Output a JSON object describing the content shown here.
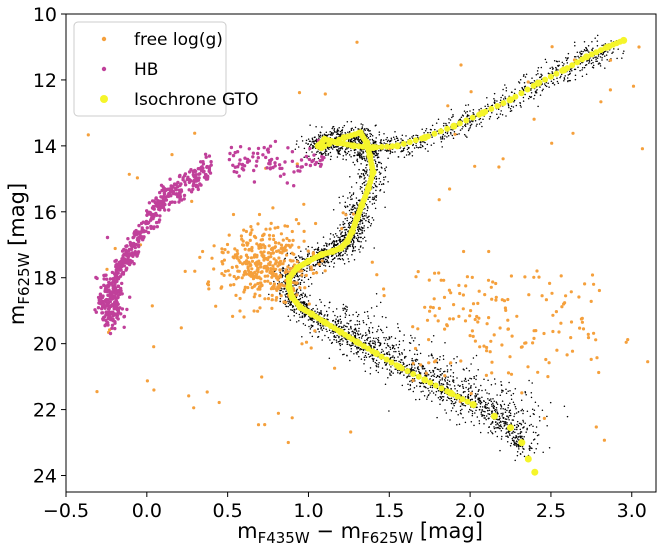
{
  "chart_data": {
    "type": "scatter",
    "xlabel": {
      "main": "m",
      "sub1": "F435W",
      "mid": " − m",
      "sub2": "F625W",
      "unit": " [mag]"
    },
    "ylabel": {
      "main": "m",
      "sub": "F625W",
      "unit": " [mag]"
    },
    "xlim": [
      -0.5,
      3.15
    ],
    "ylim": [
      24.5,
      10
    ],
    "y_inverted": true,
    "xticks": [
      -0.5,
      0.0,
      0.5,
      1.0,
      1.5,
      2.0,
      2.5,
      3.0
    ],
    "xtick_labels": [
      "−0.5",
      "0.0",
      "0.5",
      "1.0",
      "1.5",
      "2.0",
      "2.5",
      "3.0"
    ],
    "yticks": [
      10,
      12,
      14,
      16,
      18,
      20,
      22,
      24
    ],
    "ytick_labels": [
      "10",
      "12",
      "14",
      "16",
      "18",
      "20",
      "22",
      "24"
    ],
    "grid": false,
    "legend_position": "top-left",
    "legend": [
      {
        "label": "free log(g)",
        "color": "#f5a03c"
      },
      {
        "label": "HB",
        "color": "#c0409a"
      },
      {
        "label": "Isochrone GTO",
        "color": "#f5f52a"
      }
    ],
    "series": [
      {
        "name": "Isochrone GTO",
        "color": "#f5f52a",
        "x": [
          2.95,
          2.85,
          2.72,
          2.58,
          2.42,
          2.25,
          2.08,
          1.9,
          1.72,
          1.55,
          1.4,
          1.28,
          1.18,
          1.1,
          1.06,
          1.08,
          1.22,
          1.32,
          1.36,
          1.38,
          1.4,
          1.37,
          1.33,
          1.3,
          1.27,
          1.24,
          1.2,
          1.15,
          1.08,
          1.0,
          0.93,
          0.88,
          0.88,
          0.9,
          0.95,
          1.02,
          1.1,
          1.2,
          1.3,
          1.42,
          1.56,
          1.72,
          1.88,
          2.02,
          2.15,
          2.25,
          2.32,
          2.36,
          2.4
        ],
        "y": [
          10.8,
          11.0,
          11.3,
          11.7,
          12.1,
          12.6,
          13.0,
          13.4,
          13.75,
          14.0,
          14.05,
          14.0,
          13.9,
          13.8,
          14.0,
          14.05,
          13.75,
          13.6,
          13.9,
          14.3,
          14.8,
          15.3,
          15.8,
          16.2,
          16.6,
          16.9,
          17.1,
          17.2,
          17.3,
          17.5,
          17.7,
          18.0,
          18.3,
          18.6,
          18.9,
          19.1,
          19.35,
          19.65,
          19.95,
          20.3,
          20.7,
          21.1,
          21.5,
          21.85,
          22.2,
          22.55,
          23.0,
          23.5,
          23.9
        ]
      }
    ]
  }
}
